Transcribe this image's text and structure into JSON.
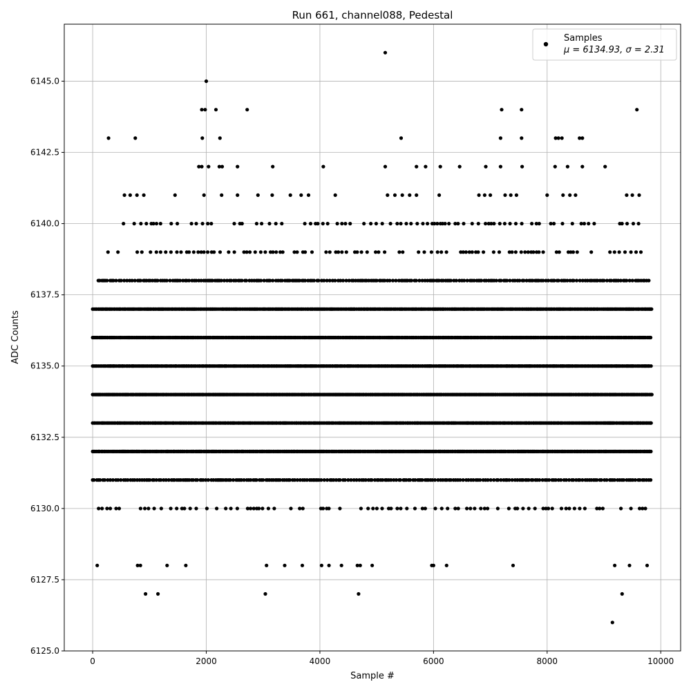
{
  "chart_data": {
    "type": "scatter",
    "title": "Run 661, channel088, Pedestal",
    "xlabel": "Sample #",
    "ylabel": "ADC Counts",
    "xlim": [
      -500,
      10350
    ],
    "ylim": [
      6125.0,
      6147.0
    ],
    "xticks": [
      "0",
      "2000",
      "4000",
      "6000",
      "8000",
      "10000"
    ],
    "yticks": [
      "6125.0",
      "6127.5",
      "6130.0",
      "6132.5",
      "6135.0",
      "6137.5",
      "6140.0",
      "6142.5",
      "6145.0"
    ],
    "grid": true,
    "legend_position": "top-right",
    "marker_color": "#000000",
    "series": [
      {
        "name": "Samples",
        "stats_label": "μ = 6134.93, σ = 2.31",
        "mean": 6134.93,
        "sigma": 2.31,
        "n_samples": 9850,
        "value_levels": [
          {
            "y": 6137,
            "x_min": 0,
            "x_max": 9850,
            "density": "dense"
          },
          {
            "y": 6136,
            "x_min": 0,
            "x_max": 9850,
            "density": "dense"
          },
          {
            "y": 6135,
            "x_min": 0,
            "x_max": 9850,
            "density": "dense"
          },
          {
            "y": 6134,
            "x_min": 0,
            "x_max": 9850,
            "density": "dense"
          },
          {
            "y": 6133,
            "x_min": 0,
            "x_max": 9850,
            "density": "dense"
          },
          {
            "y": 6132,
            "x_min": 0,
            "x_max": 9850,
            "density": "dense"
          },
          {
            "y": 6131,
            "x_min": 0,
            "x_max": 9850,
            "density": "medium"
          },
          {
            "y": 6138,
            "x_min": 100,
            "x_max": 9800,
            "density": "medium"
          },
          {
            "y": 6139,
            "x_min": 270,
            "x_max": 9740,
            "density": "sparse"
          },
          {
            "y": 6140,
            "x_min": 500,
            "x_max": 9650,
            "density": "sparse"
          },
          {
            "y": 6130,
            "x_min": 0,
            "x_max": 9830,
            "density": "sparse"
          }
        ],
        "points": [
          {
            "x": 5150,
            "y": 6146
          },
          {
            "x": 2000,
            "y": 6145
          },
          {
            "x": 1920,
            "y": 6144
          },
          {
            "x": 1980,
            "y": 6144
          },
          {
            "x": 2170,
            "y": 6144
          },
          {
            "x": 2720,
            "y": 6144
          },
          {
            "x": 7200,
            "y": 6144
          },
          {
            "x": 7550,
            "y": 6144
          },
          {
            "x": 9580,
            "y": 6144
          },
          {
            "x": 280,
            "y": 6143
          },
          {
            "x": 750,
            "y": 6143
          },
          {
            "x": 1930,
            "y": 6143
          },
          {
            "x": 2240,
            "y": 6143
          },
          {
            "x": 5430,
            "y": 6143
          },
          {
            "x": 7180,
            "y": 6143
          },
          {
            "x": 7550,
            "y": 6143
          },
          {
            "x": 8150,
            "y": 6143
          },
          {
            "x": 8200,
            "y": 6143
          },
          {
            "x": 8260,
            "y": 6143
          },
          {
            "x": 8570,
            "y": 6143
          },
          {
            "x": 8620,
            "y": 6143
          },
          {
            "x": 1870,
            "y": 6142
          },
          {
            "x": 1920,
            "y": 6142
          },
          {
            "x": 2040,
            "y": 6142
          },
          {
            "x": 2230,
            "y": 6142
          },
          {
            "x": 2280,
            "y": 6142
          },
          {
            "x": 2550,
            "y": 6142
          },
          {
            "x": 3170,
            "y": 6142
          },
          {
            "x": 4060,
            "y": 6142
          },
          {
            "x": 5150,
            "y": 6142
          },
          {
            "x": 5700,
            "y": 6142
          },
          {
            "x": 5860,
            "y": 6142
          },
          {
            "x": 6120,
            "y": 6142
          },
          {
            "x": 6460,
            "y": 6142
          },
          {
            "x": 6920,
            "y": 6142
          },
          {
            "x": 7180,
            "y": 6142
          },
          {
            "x": 7560,
            "y": 6142
          },
          {
            "x": 8140,
            "y": 6142
          },
          {
            "x": 8360,
            "y": 6142
          },
          {
            "x": 8620,
            "y": 6142
          },
          {
            "x": 9020,
            "y": 6142
          },
          {
            "x": 560,
            "y": 6141
          },
          {
            "x": 660,
            "y": 6141
          },
          {
            "x": 780,
            "y": 6141
          },
          {
            "x": 900,
            "y": 6141
          },
          {
            "x": 1450,
            "y": 6141
          },
          {
            "x": 1960,
            "y": 6141
          },
          {
            "x": 2270,
            "y": 6141
          },
          {
            "x": 2550,
            "y": 6141
          },
          {
            "x": 2910,
            "y": 6141
          },
          {
            "x": 3160,
            "y": 6141
          },
          {
            "x": 3480,
            "y": 6141
          },
          {
            "x": 3670,
            "y": 6141
          },
          {
            "x": 3800,
            "y": 6141
          },
          {
            "x": 4270,
            "y": 6141
          },
          {
            "x": 5190,
            "y": 6141
          },
          {
            "x": 5320,
            "y": 6141
          },
          {
            "x": 5450,
            "y": 6141
          },
          {
            "x": 5580,
            "y": 6141
          },
          {
            "x": 5700,
            "y": 6141
          },
          {
            "x": 6100,
            "y": 6141
          },
          {
            "x": 6800,
            "y": 6141
          },
          {
            "x": 6900,
            "y": 6141
          },
          {
            "x": 7000,
            "y": 6141
          },
          {
            "x": 7260,
            "y": 6141
          },
          {
            "x": 7360,
            "y": 6141
          },
          {
            "x": 7460,
            "y": 6141
          },
          {
            "x": 8000,
            "y": 6141
          },
          {
            "x": 8280,
            "y": 6141
          },
          {
            "x": 8400,
            "y": 6141
          },
          {
            "x": 8500,
            "y": 6141
          },
          {
            "x": 9400,
            "y": 6141
          },
          {
            "x": 9500,
            "y": 6141
          },
          {
            "x": 9620,
            "y": 6141
          },
          {
            "x": 80,
            "y": 6128
          },
          {
            "x": 790,
            "y": 6128
          },
          {
            "x": 840,
            "y": 6128
          },
          {
            "x": 1310,
            "y": 6128
          },
          {
            "x": 1640,
            "y": 6128
          },
          {
            "x": 3060,
            "y": 6128
          },
          {
            "x": 3380,
            "y": 6128
          },
          {
            "x": 3690,
            "y": 6128
          },
          {
            "x": 4030,
            "y": 6128
          },
          {
            "x": 4160,
            "y": 6128
          },
          {
            "x": 4380,
            "y": 6128
          },
          {
            "x": 4660,
            "y": 6128
          },
          {
            "x": 4710,
            "y": 6128
          },
          {
            "x": 4920,
            "y": 6128
          },
          {
            "x": 5970,
            "y": 6128
          },
          {
            "x": 6000,
            "y": 6128
          },
          {
            "x": 6230,
            "y": 6128
          },
          {
            "x": 7400,
            "y": 6128
          },
          {
            "x": 9190,
            "y": 6128
          },
          {
            "x": 9450,
            "y": 6128
          },
          {
            "x": 9760,
            "y": 6128
          },
          {
            "x": 930,
            "y": 6127
          },
          {
            "x": 1150,
            "y": 6127
          },
          {
            "x": 3040,
            "y": 6127
          },
          {
            "x": 4680,
            "y": 6127
          },
          {
            "x": 9320,
            "y": 6127
          },
          {
            "x": 9150,
            "y": 6126
          }
        ]
      }
    ]
  }
}
